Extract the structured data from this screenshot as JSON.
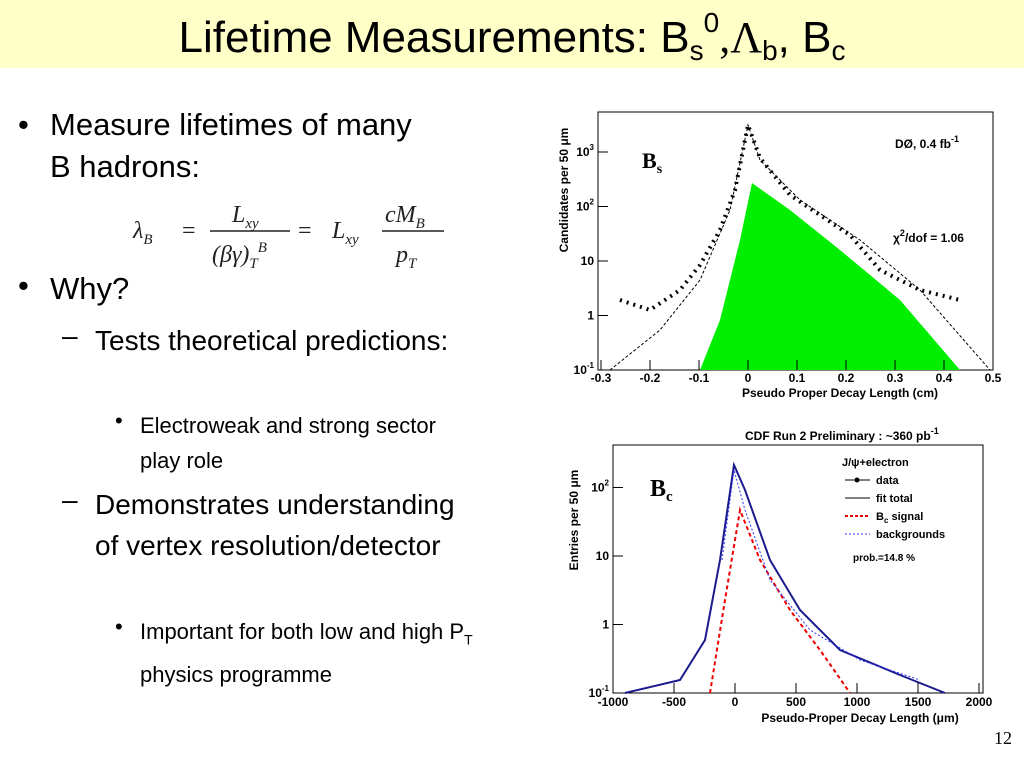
{
  "title": {
    "main": "Lifetime Measurements: B",
    "sub1": "s",
    "sup1": "0",
    "mid": ",Λ",
    "sub2": "b",
    "mid2": ", B",
    "sub3": "c"
  },
  "bullets": [
    {
      "text": "Measure lifetimes of many B hadrons:"
    },
    {
      "text": "Why?",
      "children": [
        {
          "text": "Tests theoretical predictions:",
          "children": [
            {
              "text": "Electroweak and strong sector play role"
            }
          ]
        },
        {
          "text": "Demonstrates understanding of vertex resolution/detector",
          "children": [
            {
              "text": "Important for both low and high P",
              "sub": "T",
              "after": " physics programme"
            }
          ]
        }
      ]
    }
  ],
  "formula": {
    "lhs": "λ",
    "lhs_sub": "B",
    "eq": "=",
    "num1": "L",
    "num1_sub": "xy",
    "den1": "(βγ)",
    "den1_sub": "T",
    "den1_sup": "B",
    "eq2": "=",
    "mid": "L",
    "mid_sub": "xy",
    "num2": "cM",
    "num2_sub": "B",
    "den2": "p",
    "den2_sub": "T"
  },
  "plot_bs": {
    "label": "B",
    "label_sub": "s",
    "ylabel": "Candidates per 50 μm",
    "xlabel": "Pseudo Proper Decay Length  (cm)",
    "yticks": [
      {
        "base": "10",
        "exp": "-1"
      },
      {
        "base": "1"
      },
      {
        "base": "10"
      },
      {
        "base": "10",
        "exp": "2"
      },
      {
        "base": "10",
        "exp": "3"
      }
    ],
    "xticks": [
      "-0.3",
      "-0.2",
      "-0.1",
      "0",
      "0.1",
      "0.2",
      "0.3",
      "0.4",
      "0.5"
    ],
    "lumi": "DØ,  0.4 fb",
    "lumi_sup": "-1",
    "chi": "χ",
    "chi_sup": "2",
    "chi_rest": "/dof = 1.06"
  },
  "plot_bc": {
    "header": "CDF Run 2 Preliminary : ~360 pb",
    "header_sup": "-1",
    "label": "B",
    "label_sub": "c",
    "ylabel": "Entries per 50 μm",
    "xlabel": "Pseudo-Proper Decay Length (μm)",
    "yticks": [
      {
        "base": "10",
        "exp": "-1"
      },
      {
        "base": "1"
      },
      {
        "base": "10"
      },
      {
        "base": "10",
        "exp": "2"
      }
    ],
    "xticks": [
      "-1000",
      "-500",
      "0",
      "500",
      "1000",
      "1500",
      "2000"
    ],
    "legend_title": "J/ψ+electron",
    "legend": [
      "data",
      "fit total",
      "B",
      "c",
      " signal",
      "backgrounds"
    ],
    "prob": "prob.=14.8 %"
  },
  "slide_number": "12"
}
